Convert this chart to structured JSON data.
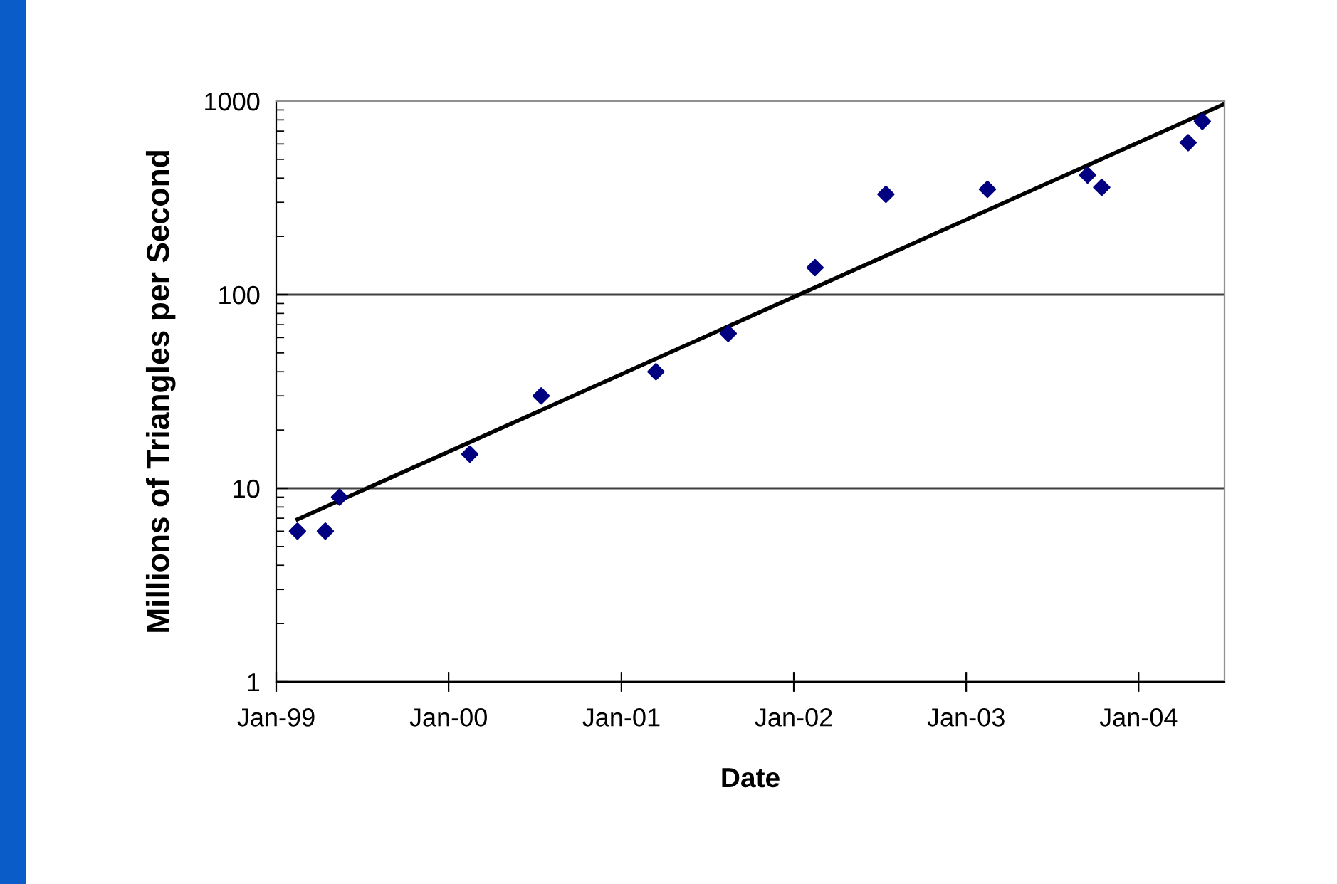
{
  "chart_data": {
    "type": "scatter",
    "xlabel": "Date",
    "ylabel": "Millions of Triangles per Second",
    "log": "y",
    "grid": "y",
    "legend": false,
    "xlim": [
      "1999-01-01",
      "2004-07-01"
    ],
    "xticks": [
      {
        "value": "1999-01-01",
        "label": "Jan-99"
      },
      {
        "value": "2000-01-01",
        "label": "Jan-00"
      },
      {
        "value": "2001-01-01",
        "label": "Jan-01"
      },
      {
        "value": "2002-01-01",
        "label": "Jan-02"
      },
      {
        "value": "2003-01-01",
        "label": "Jan-03"
      },
      {
        "value": "2004-01-01",
        "label": "Jan-04"
      }
    ],
    "ylim": [
      1,
      1000
    ],
    "yticks": [
      1,
      10,
      100,
      1000
    ],
    "series": [
      {
        "color": "#000080",
        "marker": "diamond",
        "x": [
          "1999-02-15",
          "1999-04-15",
          "1999-05-15",
          "2000-02-15",
          "2000-07-15",
          "2001-03-15",
          "2001-08-15",
          "2002-02-15",
          "2002-07-15",
          "2003-02-15",
          "2003-09-15",
          "2003-10-15",
          "2004-04-15",
          "2004-05-15"
        ],
        "values": [
          6,
          6,
          9,
          15,
          30,
          40,
          63,
          138,
          330,
          350,
          415,
          358,
          610,
          785
        ]
      },
      {
        "type": "line",
        "color": "#000000",
        "line_style": "solid",
        "marker": "none",
        "x": [
          "1999-02-15",
          "2004-07-01"
        ],
        "values": [
          6.9,
          967
        ]
      }
    ]
  }
}
